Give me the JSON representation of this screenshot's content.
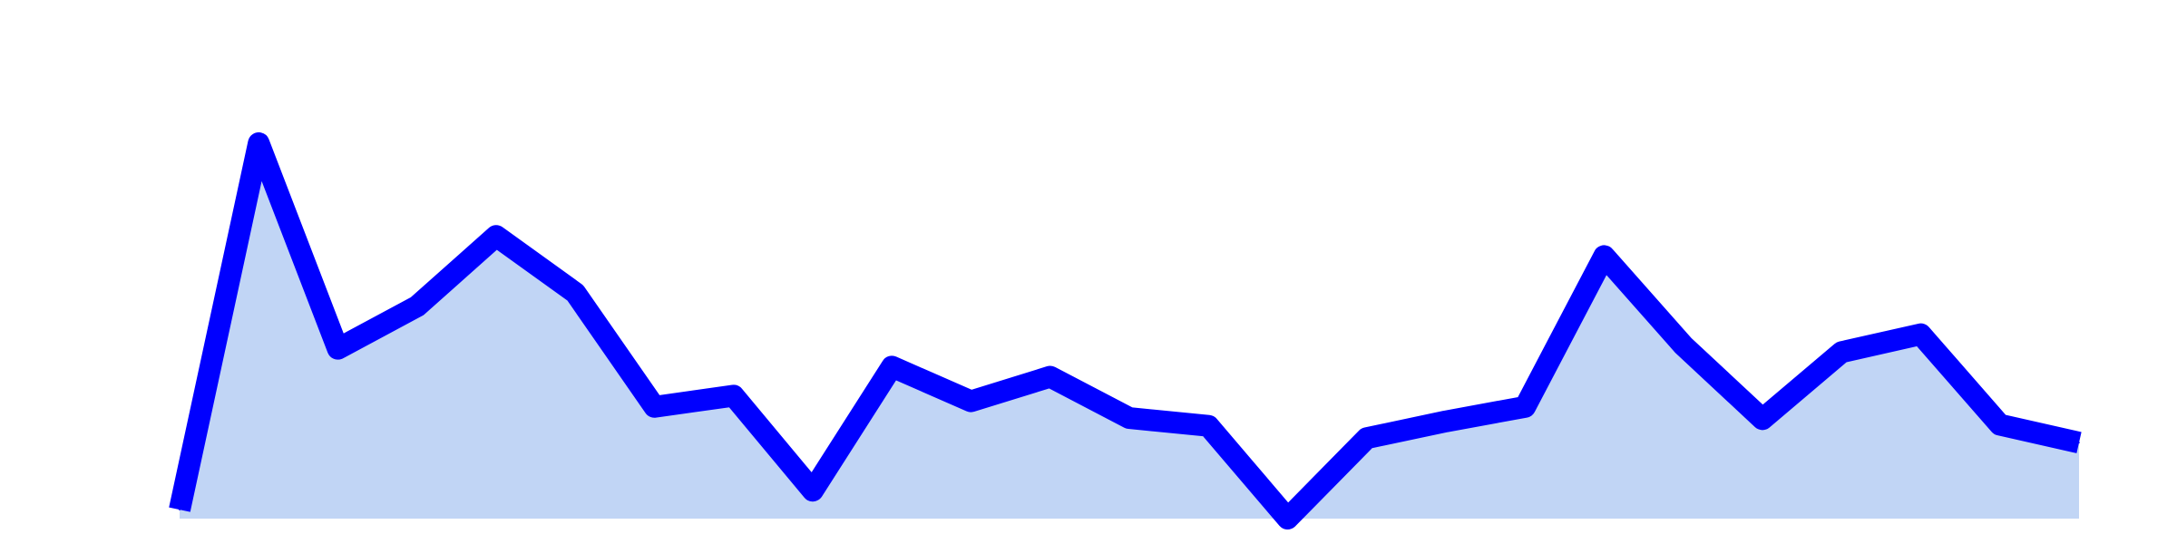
{
  "chart_data": {
    "type": "area",
    "title": "",
    "xlabel": "",
    "ylabel": "",
    "x": [
      0,
      1,
      2,
      3,
      4,
      5,
      6,
      7,
      8,
      9,
      10,
      11,
      12,
      13,
      14,
      15,
      16,
      17,
      18,
      19,
      20,
      21,
      22,
      23,
      24
    ],
    "series": [
      {
        "values": [
          0.8,
          33.6,
          15.2,
          19.0,
          25.3,
          20.2,
          10.0,
          11.0,
          2.5,
          13.6,
          10.5,
          12.7,
          9.0,
          8.3,
          0.0,
          7.2,
          8.7,
          10.0,
          23.5,
          15.5,
          8.9,
          14.9,
          16.5,
          8.4,
          6.8
        ]
      }
    ],
    "xlim": [
      0,
      24
    ],
    "ylim": [
      0,
      34
    ],
    "grid": false,
    "legend": "none",
    "colors": {
      "line": "#0000ff",
      "fill": "#c1d5f5",
      "background": "#ffffff"
    }
  }
}
